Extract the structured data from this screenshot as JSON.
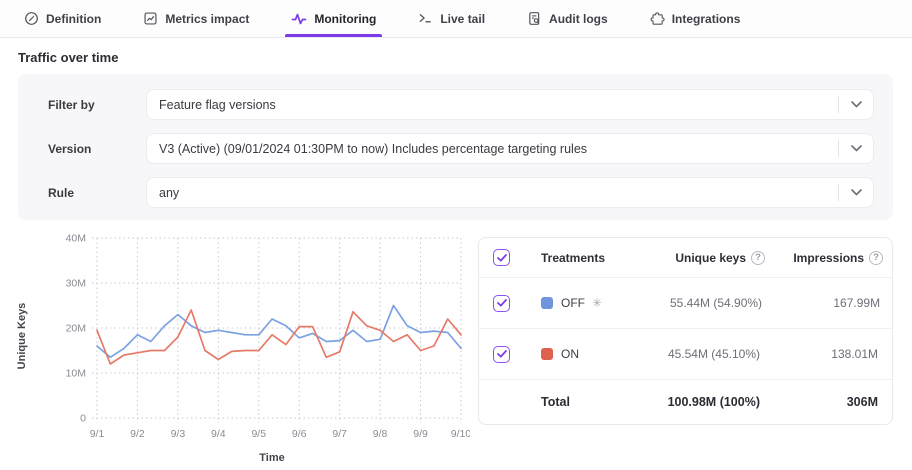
{
  "tabs": [
    {
      "label": "Definition",
      "icon": "target-icon",
      "active": false
    },
    {
      "label": "Metrics impact",
      "icon": "metrics-chart-icon",
      "active": false
    },
    {
      "label": "Monitoring",
      "icon": "pulse-icon",
      "active": true
    },
    {
      "label": "Live tail",
      "icon": "terminal-icon",
      "active": false
    },
    {
      "label": "Audit logs",
      "icon": "audit-log-icon",
      "active": false
    },
    {
      "label": "Integrations",
      "icon": "puzzle-icon",
      "active": false
    }
  ],
  "page": {
    "section_title": "Traffic over time"
  },
  "filters": {
    "rows": [
      {
        "label": "Filter by",
        "value": "Feature flag versions"
      },
      {
        "label": "Version",
        "value": "V3 (Active) (09/01/2024 01:30PM to now) Includes percentage targeting rules"
      },
      {
        "label": "Rule",
        "value": "any"
      }
    ]
  },
  "chart_data": {
    "type": "line",
    "xlabel": "Time",
    "ylabel": "Unique Keys",
    "x_ticks": [
      "9/1",
      "9/2",
      "9/3",
      "9/4",
      "9/5",
      "9/6",
      "9/7",
      "9/8",
      "9/9",
      "9/10"
    ],
    "y_ticks": [
      "0",
      "10M",
      "20M",
      "30M",
      "40M"
    ],
    "units": "millions",
    "ylim": [
      0,
      40
    ],
    "x_range_days": [
      1,
      10
    ],
    "grid": "dotted",
    "series": [
      {
        "name": "OFF",
        "color": "#7CA1E3",
        "x": [
          1,
          1.33,
          1.67,
          2,
          2.33,
          2.67,
          3,
          3.33,
          3.67,
          4,
          4.33,
          4.67,
          5,
          5.33,
          5.67,
          6,
          6.33,
          6.67,
          7,
          7.33,
          7.67,
          8,
          8.33,
          8.67,
          9,
          9.33,
          9.67,
          10
        ],
        "values": [
          16,
          13.5,
          15.5,
          18.5,
          17,
          20.5,
          23,
          20.5,
          19,
          19.5,
          19,
          18.5,
          18.5,
          22,
          20.5,
          17.8,
          18.8,
          17,
          17.2,
          19.5,
          17,
          17.5,
          25,
          20.5,
          19,
          19.3,
          19,
          15.5
        ]
      },
      {
        "name": "ON",
        "color": "#E57A68",
        "x": [
          1,
          1.33,
          1.67,
          2,
          2.33,
          2.67,
          3,
          3.33,
          3.67,
          4,
          4.33,
          4.67,
          5,
          5.33,
          5.67,
          6,
          6.33,
          6.67,
          7,
          7.33,
          7.67,
          8,
          8.33,
          8.67,
          9,
          9.33,
          9.67,
          10
        ],
        "values": [
          19.5,
          12,
          14,
          14.5,
          15,
          15,
          18,
          24,
          15,
          13,
          14.8,
          15,
          15,
          18.5,
          16.3,
          20.3,
          20.3,
          13.5,
          14.7,
          23.6,
          20.5,
          19.5,
          17,
          18.5,
          15,
          16,
          22,
          18.5
        ]
      }
    ]
  },
  "treatments_table": {
    "headers": {
      "treatments": "Treatments",
      "unique_keys": "Unique keys",
      "impressions": "Impressions"
    },
    "help_icon": "?",
    "default_treatment_glyph": "✳",
    "rows": [
      {
        "name": "OFF",
        "swatch": "#6F95DC",
        "is_default": true,
        "unique_keys": "55.44M (54.90%)",
        "impressions": "167.99M"
      },
      {
        "name": "ON",
        "swatch": "#E0604E",
        "is_default": false,
        "unique_keys": "45.54M (45.10%)",
        "impressions": "138.01M"
      }
    ],
    "total": {
      "label": "Total",
      "unique_keys": "100.98M (100%)",
      "impressions": "306M"
    }
  },
  "colors": {
    "accent": "#7C3AED",
    "line_off": "#7CA1E3",
    "line_on": "#E57A68",
    "checkbox": "#9050EE",
    "grid": "#C9C9D1"
  }
}
